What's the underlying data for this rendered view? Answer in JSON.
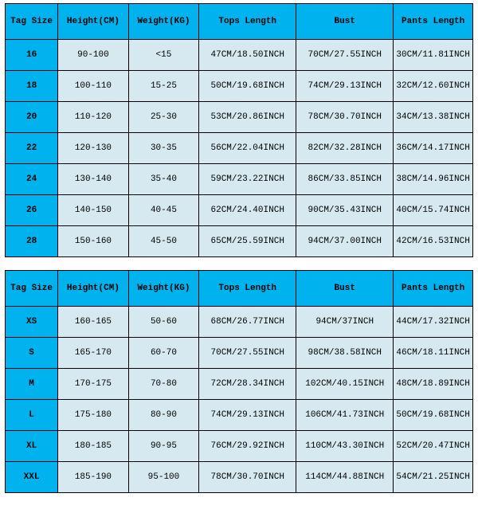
{
  "colors": {
    "header_bg": "#00b3ef",
    "row_bg": "#d6e9f0",
    "border": "#000000"
  },
  "columns": [
    {
      "key": "tag",
      "label": "Tag Size",
      "cls": "col-tag"
    },
    {
      "key": "height",
      "label": "Height(CM)",
      "cls": "col-h"
    },
    {
      "key": "weight",
      "label": "Weight(KG)",
      "cls": "col-w"
    },
    {
      "key": "tops",
      "label": "Tops Length",
      "cls": "col-top"
    },
    {
      "key": "bust",
      "label": "Bust",
      "cls": "col-bust"
    },
    {
      "key": "pants",
      "label": "Pants Length",
      "cls": "col-pant"
    }
  ],
  "tables": [
    {
      "rows": [
        {
          "tag": "16",
          "height": "90-100",
          "weight": "<15",
          "tops": "47CM/18.50INCH",
          "bust": "70CM/27.55INCH",
          "pants": "30CM/11.81INCH"
        },
        {
          "tag": "18",
          "height": "100-110",
          "weight": "15-25",
          "tops": "50CM/19.68INCH",
          "bust": "74CM/29.13INCH",
          "pants": "32CM/12.60INCH"
        },
        {
          "tag": "20",
          "height": "110-120",
          "weight": "25-30",
          "tops": "53CM/20.86INCH",
          "bust": "78CM/30.70INCH",
          "pants": "34CM/13.38INCH"
        },
        {
          "tag": "22",
          "height": "120-130",
          "weight": "30-35",
          "tops": "56CM/22.04INCH",
          "bust": "82CM/32.28INCH",
          "pants": "36CM/14.17INCH"
        },
        {
          "tag": "24",
          "height": "130-140",
          "weight": "35-40",
          "tops": "59CM/23.22INCH",
          "bust": "86CM/33.85INCH",
          "pants": "38CM/14.96INCH"
        },
        {
          "tag": "26",
          "height": "140-150",
          "weight": "40-45",
          "tops": "62CM/24.40INCH",
          "bust": "90CM/35.43INCH",
          "pants": "40CM/15.74INCH"
        },
        {
          "tag": "28",
          "height": "150-160",
          "weight": "45-50",
          "tops": "65CM/25.59INCH",
          "bust": "94CM/37.00INCH",
          "pants": "42CM/16.53INCH"
        }
      ]
    },
    {
      "rows": [
        {
          "tag": "XS",
          "height": "160-165",
          "weight": "50-60",
          "tops": "68CM/26.77INCH",
          "bust": "94CM/37INCH",
          "pants": "44CM/17.32INCH"
        },
        {
          "tag": "S",
          "height": "165-170",
          "weight": "60-70",
          "tops": "70CM/27.55INCH",
          "bust": "98CM/38.58INCH",
          "pants": "46CM/18.11INCH"
        },
        {
          "tag": "M",
          "height": "170-175",
          "weight": "70-80",
          "tops": "72CM/28.34INCH",
          "bust": "102CM/40.15INCH",
          "pants": "48CM/18.89INCH"
        },
        {
          "tag": "L",
          "height": "175-180",
          "weight": "80-90",
          "tops": "74CM/29.13INCH",
          "bust": "106CM/41.73INCH",
          "pants": "50CM/19.68INCH"
        },
        {
          "tag": "XL",
          "height": "180-185",
          "weight": "90-95",
          "tops": "76CM/29.92INCH",
          "bust": "110CM/43.30INCH",
          "pants": "52CM/20.47INCH"
        },
        {
          "tag": "XXL",
          "height": "185-190",
          "weight": "95-100",
          "tops": "78CM/30.70INCH",
          "bust": "114CM/44.88INCH",
          "pants": "54CM/21.25INCH"
        }
      ]
    }
  ]
}
